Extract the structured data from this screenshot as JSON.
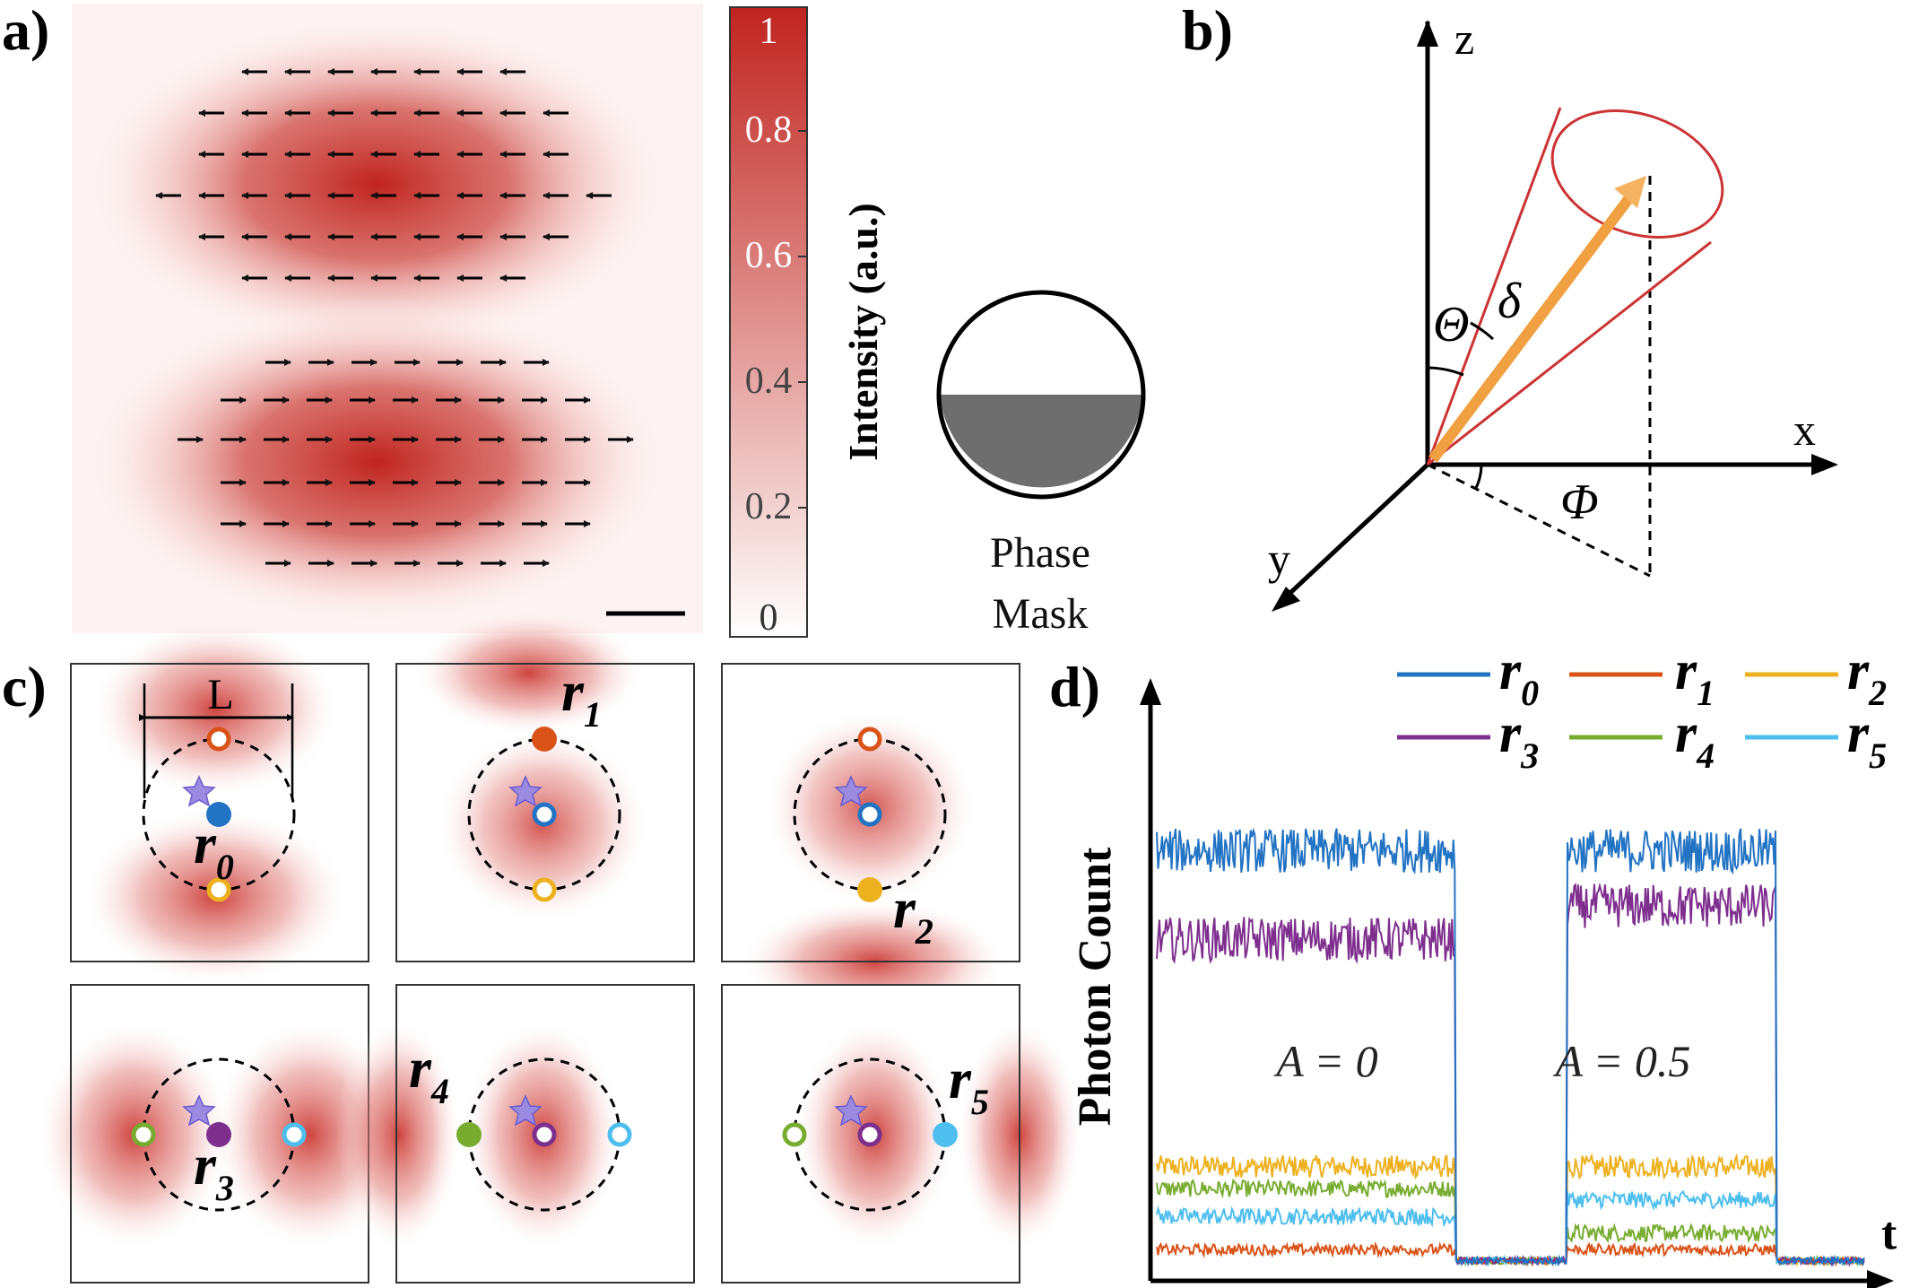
{
  "panels": {
    "a": "a)",
    "b": "b)",
    "c": "c)",
    "d": "d)"
  },
  "panel_a": {
    "colorbar": {
      "label": "Intensity (a.u.)",
      "ticks": [
        "1",
        "0.8",
        "0.6",
        "0.4",
        "0.2",
        "0"
      ],
      "color_max": "#c0241f",
      "color_min": "#ffffff"
    },
    "phase_mask": {
      "line1": "Phase",
      "line2": "Mask",
      "fill": "#6e6e6e"
    }
  },
  "panel_b": {
    "axes": {
      "x": "x",
      "y": "y",
      "z": "z"
    },
    "angles": {
      "theta": "Θ",
      "phi": "Φ",
      "delta": "δ"
    },
    "vector_color": "#f0a040",
    "cone_color": "#cc3333"
  },
  "panel_c": {
    "length_label": "L",
    "subplots": [
      {
        "label_main": "r",
        "label_sub": "0"
      },
      {
        "label_main": "r",
        "label_sub": "1"
      },
      {
        "label_main": "r",
        "label_sub": "2"
      },
      {
        "label_main": "r",
        "label_sub": "3"
      },
      {
        "label_main": "r",
        "label_sub": "4"
      },
      {
        "label_main": "r",
        "label_sub": "5"
      }
    ],
    "colors": {
      "r0": "#2273c3",
      "r1": "#d95319",
      "r2": "#edb120",
      "r3": "#7e2f8e",
      "r4": "#77ac30",
      "r5": "#4dbeee",
      "star": "#9b8be0"
    }
  },
  "chart_data": {
    "type": "line",
    "title": "",
    "xlabel": "t",
    "ylabel": "Photon Count",
    "annotations": [
      "A = 0",
      "A = 0.5"
    ],
    "legend_placement": "top-right",
    "series": [
      {
        "name": "r0",
        "color": "#2273c3",
        "segments": [
          {
            "t": [
              0,
              0.4
            ],
            "level": 0.76,
            "noise": 0.04
          },
          {
            "t": [
              0.55,
              0.83
            ],
            "level": 0.76,
            "noise": 0.04
          }
        ],
        "off_level": 0.02
      },
      {
        "name": "r1",
        "color": "#d95319",
        "segments": [
          {
            "t": [
              0,
              0.4
            ],
            "level": 0.04,
            "noise": 0.01
          },
          {
            "t": [
              0.55,
              0.83
            ],
            "level": 0.04,
            "noise": 0.01
          }
        ],
        "off_level": 0.02
      },
      {
        "name": "r2",
        "color": "#edb120",
        "segments": [
          {
            "t": [
              0,
              0.4
            ],
            "level": 0.19,
            "noise": 0.02
          },
          {
            "t": [
              0.55,
              0.83
            ],
            "level": 0.19,
            "noise": 0.02
          }
        ],
        "off_level": 0.02
      },
      {
        "name": "r3",
        "color": "#7e2f8e",
        "segments": [
          {
            "t": [
              0,
              0.4
            ],
            "level": 0.6,
            "noise": 0.04
          },
          {
            "t": [
              0.55,
              0.83
            ],
            "level": 0.66,
            "noise": 0.04
          }
        ],
        "off_level": 0.02
      },
      {
        "name": "r4",
        "color": "#77ac30",
        "segments": [
          {
            "t": [
              0,
              0.4
            ],
            "level": 0.15,
            "noise": 0.015
          },
          {
            "t": [
              0.55,
              0.83
            ],
            "level": 0.07,
            "noise": 0.015
          }
        ],
        "off_level": 0.02
      },
      {
        "name": "r5",
        "color": "#4dbeee",
        "segments": [
          {
            "t": [
              0,
              0.4
            ],
            "level": 0.1,
            "noise": 0.015
          },
          {
            "t": [
              0.55,
              0.83
            ],
            "level": 0.13,
            "noise": 0.015
          }
        ],
        "off_level": 0.02
      }
    ]
  }
}
